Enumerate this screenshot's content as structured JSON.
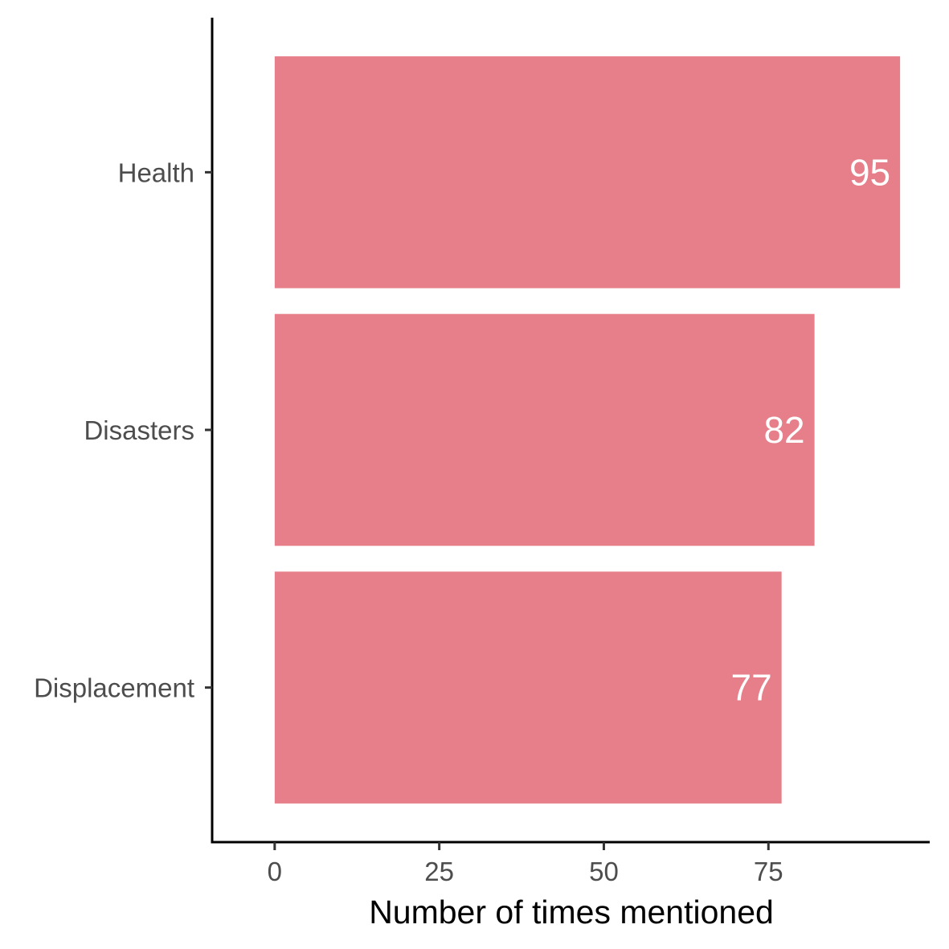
{
  "chart_data": {
    "type": "bar",
    "orientation": "horizontal",
    "categories": [
      "Health",
      "Disasters",
      "Displacement"
    ],
    "values": [
      95,
      82,
      77
    ],
    "data_labels": [
      "95",
      "82",
      "77"
    ],
    "title": "",
    "xlabel": "Number of times mentioned",
    "ylabel": "",
    "xlim": [
      -9.5,
      99.5
    ],
    "x_ticks": [
      0,
      25,
      50,
      75
    ],
    "x_tick_labels": [
      "0",
      "25",
      "50",
      "75"
    ],
    "grid": false,
    "legend": "none",
    "bar_color": "#E67F8A",
    "label_color": "#FFFFFF"
  }
}
